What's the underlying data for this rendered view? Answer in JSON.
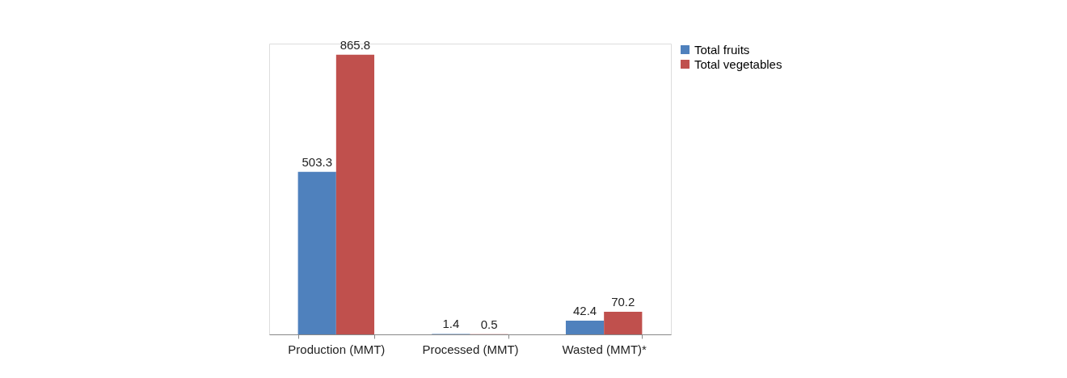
{
  "chart_data": {
    "type": "bar",
    "categories": [
      "Production (MMT)",
      "Processed (MMT)",
      "Wasted (MMT)*"
    ],
    "series": [
      {
        "name": "Total fruits",
        "color": "#4f81bd",
        "values": [
          503.3,
          1.4,
          42.4
        ]
      },
      {
        "name": "Total vegetables",
        "color": "#c0504d",
        "values": [
          865.8,
          0.5,
          70.2
        ]
      }
    ],
    "data_labels": true,
    "legend": "right",
    "grid": false,
    "tick_labels": "x"
  }
}
